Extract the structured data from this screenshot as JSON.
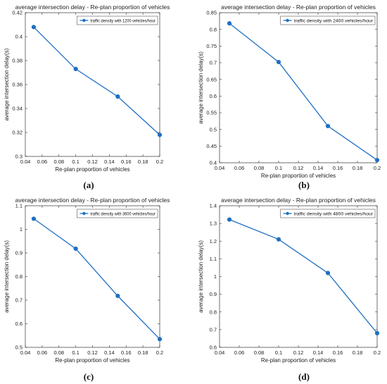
{
  "series_color": "#1f6fc2",
  "chart_data": [
    {
      "type": "line",
      "panel_label": "(a)",
      "title": "average intersection delay - Re-plan proportion of vehicles",
      "xlabel": "Re-plan proportion of vehicles",
      "ylabel": "average intersection delay(s)",
      "xlim": [
        0.04,
        0.2
      ],
      "ylim": [
        0.3,
        0.42
      ],
      "xticks": [
        "0.04",
        "0.06",
        "0.08",
        "0.1",
        "0.12",
        "0.14",
        "0.16",
        "0.18",
        "0.2"
      ],
      "yticks": [
        "0.3",
        "0.32",
        "0.34",
        "0.36",
        "0.38",
        "0.4",
        "0.42"
      ],
      "legend_position": "top-right",
      "series": [
        {
          "name": "traffic density with 1200 vehicles/hour",
          "x": [
            0.05,
            0.1,
            0.15,
            0.2
          ],
          "y": [
            0.408,
            0.373,
            0.35,
            0.318
          ]
        }
      ]
    },
    {
      "type": "line",
      "panel_label": "(b)",
      "title": "average intersection delay - Re-plan proportion of vehicles",
      "xlabel": "Re-plan proportion of vehicles",
      "ylabel": "average intersection delay(s)",
      "xlim": [
        0.04,
        0.2
      ],
      "ylim": [
        0.4,
        0.85
      ],
      "xticks": [
        "0.04",
        "0.06",
        "0.08",
        "0.1",
        "0.12",
        "0.14",
        "0.16",
        "0.18",
        "0.2"
      ],
      "yticks": [
        "0.4",
        "0.45",
        "0.5",
        "0.55",
        "0.6",
        "0.65",
        "0.7",
        "0.75",
        "0.8",
        "0.85"
      ],
      "legend_position": "top-right",
      "series": [
        {
          "name": "traffic density with 2400 vehicles/hour",
          "x": [
            0.05,
            0.1,
            0.15,
            0.2
          ],
          "y": [
            0.818,
            0.702,
            0.51,
            0.408
          ]
        }
      ]
    },
    {
      "type": "line",
      "panel_label": "(c)",
      "title": "average intersection delay - Re-plan proportion of vehicles",
      "xlabel": "Re-plan proportion of vehicles",
      "ylabel": "average intersection delay(s)",
      "xlim": [
        0.04,
        0.2
      ],
      "ylim": [
        0.5,
        1.1
      ],
      "xticks": [
        "0.04",
        "0.06",
        "0.08",
        "0.1",
        "0.12",
        "0.14",
        "0.16",
        "0.18",
        "0.2"
      ],
      "yticks": [
        "0.5",
        "0.6",
        "0.7",
        "0.8",
        "0.9",
        "1",
        "1.1"
      ],
      "legend_position": "top-right",
      "series": [
        {
          "name": "traffic density with 3600 vehicles/hour",
          "x": [
            0.05,
            0.1,
            0.15,
            0.2
          ],
          "y": [
            1.045,
            0.918,
            0.718,
            0.535
          ]
        }
      ]
    },
    {
      "type": "line",
      "panel_label": "(d)",
      "title": "average intersection delay - Re-plan proportion of vehicles",
      "xlabel": "Re-plan proportion of vehicles",
      "ylabel": "average intersection delay(s)",
      "xlim": [
        0.04,
        0.2
      ],
      "ylim": [
        0.6,
        1.4
      ],
      "xticks": [
        "0.04",
        "0.06",
        "0.08",
        "0.1",
        "0.12",
        "0.14",
        "0.16",
        "0.18",
        "0.2"
      ],
      "yticks": [
        "0.6",
        "0.7",
        "0.8",
        "0.9",
        "1",
        "1.1",
        "1.2",
        "1.3",
        "1.4"
      ],
      "legend_position": "top-right",
      "series": [
        {
          "name": "traffic density with 4800 vehicles/hour",
          "x": [
            0.05,
            0.1,
            0.15,
            0.2
          ],
          "y": [
            1.322,
            1.21,
            1.02,
            0.68
          ]
        }
      ]
    }
  ]
}
